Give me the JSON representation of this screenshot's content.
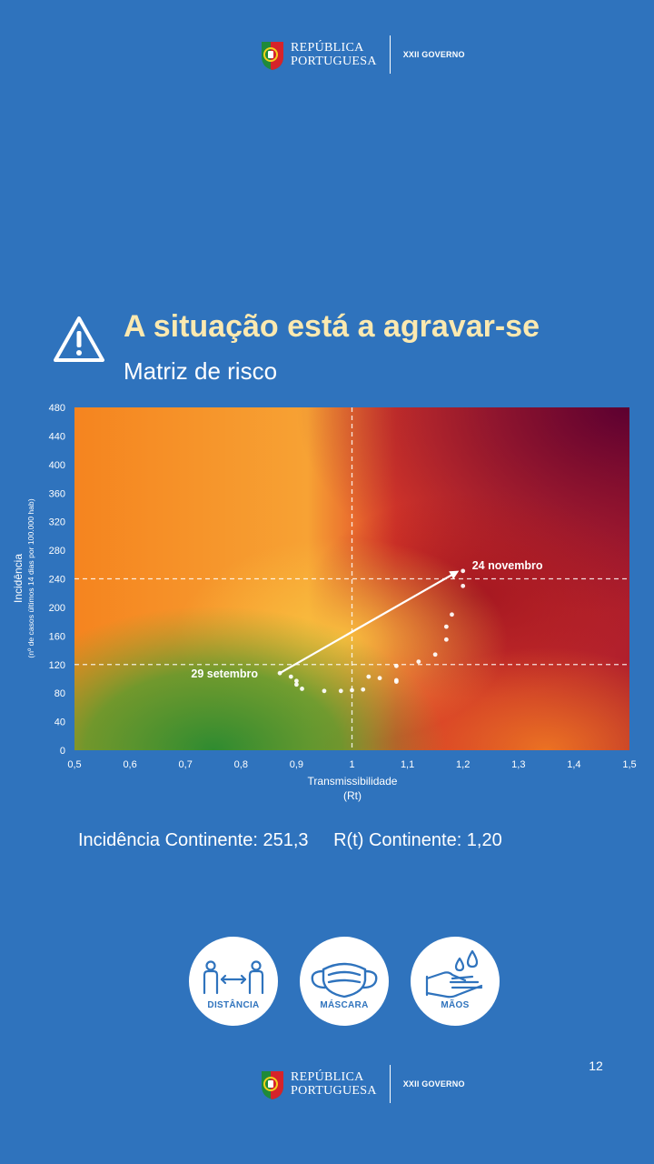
{
  "header": {
    "brand_line1": "REPÚBLICA",
    "brand_line2": "PORTUGUESA",
    "government": "XXII GOVERNO"
  },
  "title": "A situação está a agravar-se",
  "subtitle": "Matriz de risco",
  "chart_data": {
    "type": "scatter",
    "xlabel": "Transmissibilidade",
    "xlabel2": "(Rt)",
    "ylabel": "Incidência",
    "ylabel2": "(nº de casos últimos 14 dias por 100.000 hab)",
    "xlim": [
      0.5,
      1.5
    ],
    "ylim": [
      0,
      480
    ],
    "x_ticks": [
      0.5,
      0.6,
      0.7,
      0.8,
      0.9,
      1,
      1.1,
      1.2,
      1.3,
      1.4,
      1.5
    ],
    "x_tick_labels": [
      "0,5",
      "0,6",
      "0,7",
      "0,8",
      "0,9",
      "1",
      "1,1",
      "1,2",
      "1,3",
      "1,4",
      "1,5"
    ],
    "y_ticks": [
      0,
      40,
      80,
      120,
      160,
      200,
      240,
      280,
      320,
      360,
      400,
      440,
      480
    ],
    "y_tick_labels": [
      "0",
      "40",
      "80",
      "120",
      "160",
      "200",
      "240",
      "280",
      "320",
      "360",
      "400",
      "440",
      "480"
    ],
    "threshold_lines": {
      "x": 1.0,
      "y": [
        120,
        240
      ]
    },
    "points": [
      {
        "x": 0.87,
        "y": 108
      },
      {
        "x": 0.89,
        "y": 103
      },
      {
        "x": 0.9,
        "y": 97
      },
      {
        "x": 0.9,
        "y": 92
      },
      {
        "x": 0.91,
        "y": 86
      },
      {
        "x": 0.95,
        "y": 83
      },
      {
        "x": 0.98,
        "y": 83
      },
      {
        "x": 1.0,
        "y": 84
      },
      {
        "x": 1.02,
        "y": 85
      },
      {
        "x": 1.03,
        "y": 103
      },
      {
        "x": 1.05,
        "y": 101
      },
      {
        "x": 1.08,
        "y": 96
      },
      {
        "x": 1.08,
        "y": 98
      },
      {
        "x": 1.08,
        "y": 118
      },
      {
        "x": 1.12,
        "y": 124
      },
      {
        "x": 1.15,
        "y": 134
      },
      {
        "x": 1.17,
        "y": 155
      },
      {
        "x": 1.17,
        "y": 173
      },
      {
        "x": 1.18,
        "y": 190
      },
      {
        "x": 1.2,
        "y": 230
      },
      {
        "x": 1.2,
        "y": 251
      }
    ],
    "arrow": {
      "from": {
        "x": 0.87,
        "y": 108
      },
      "to": {
        "x": 1.19,
        "y": 250
      }
    },
    "annotations": [
      {
        "text": "29 setembro",
        "x": 0.87,
        "y": 108
      },
      {
        "text": "24 novembro",
        "x": 1.2,
        "y": 251
      }
    ],
    "grid": false,
    "colors": [
      "#2e8b30",
      "#f6b13a",
      "#f47d20",
      "#d22a2a",
      "#6a0033"
    ]
  },
  "summary": {
    "incidence": "Incidência Continente: 251,3",
    "rt": "R(t) Continente: 1,20"
  },
  "badges": [
    {
      "label": "DISTÂNCIA",
      "icon": "distance-icon"
    },
    {
      "label": "MÁSCARA",
      "icon": "mask-icon"
    },
    {
      "label": "MÃOS",
      "icon": "hands-icon"
    }
  ],
  "footer": {
    "page_number": "12",
    "brand_line1": "REPÚBLICA",
    "brand_line2": "PORTUGUESA",
    "government": "XXII GOVERNO"
  }
}
